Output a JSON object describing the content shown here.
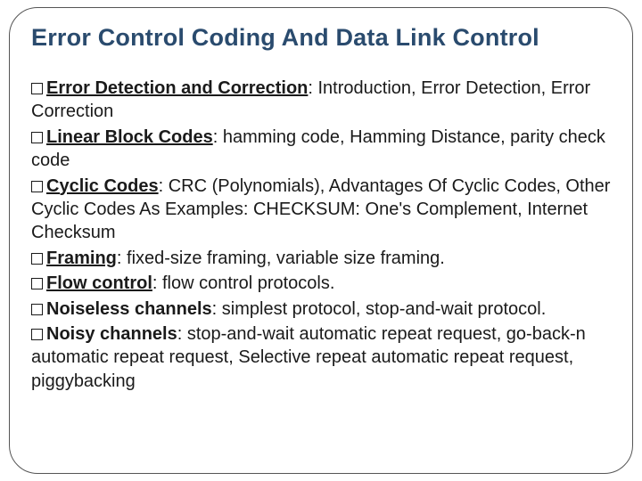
{
  "title": "Error Control Coding And Data Link Control",
  "title_color": "#2a4b6e",
  "title_fontsize": 27,
  "body_fontsize": 20,
  "text_color": "#1a1a1a",
  "border_color": "#555555",
  "border_radius": 32,
  "background_color": "#ffffff",
  "bullets": [
    {
      "topic": "Error Detection and Correction",
      "underline": true,
      "desc": ": Introduction, Error Detection, Error Correction"
    },
    {
      "topic": "Linear Block Codes",
      "underline": true,
      "desc": ": hamming code, Hamming Distance, parity check code"
    },
    {
      "topic": "Cyclic Codes",
      "underline": true,
      "desc": ": CRC (Polynomials), Advantages Of Cyclic Codes, Other Cyclic Codes As Examples: CHECKSUM: One's Complement, Internet Checksum"
    },
    {
      "topic": "Framing",
      "underline": true,
      "desc": ": fixed-size framing, variable size framing."
    },
    {
      "topic": "Flow control",
      "underline": true,
      "desc": ": flow control protocols."
    },
    {
      "topic": "Noiseless channels",
      "underline": false,
      "desc": ": simplest protocol, stop-and-wait protocol."
    },
    {
      "topic": "Noisy channels",
      "underline": false,
      "desc": ": stop-and-wait automatic repeat request, go-back-n automatic repeat request, Selective repeat automatic repeat request, piggybacking"
    }
  ]
}
